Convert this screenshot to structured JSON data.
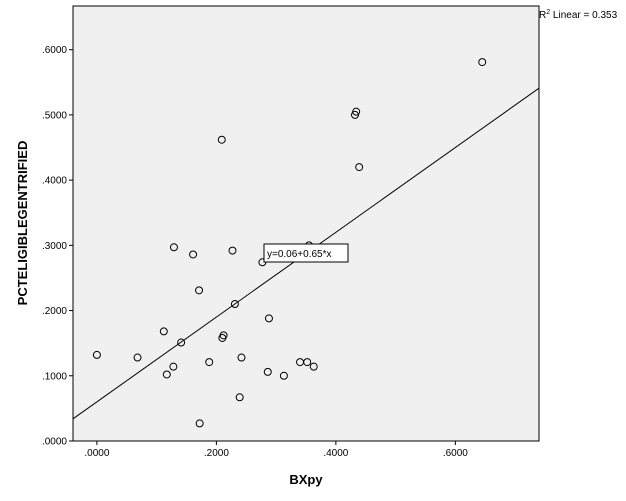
{
  "chart_data": {
    "type": "scatter",
    "title": "",
    "xlabel": "BXpy",
    "ylabel": "PCTELIGIBLEGENTRIFIED",
    "xlim": [
      -0.04,
      0.74
    ],
    "ylim": [
      0.0,
      0.667
    ],
    "x_ticks": [
      0.0,
      0.2,
      0.4,
      0.6
    ],
    "x_tick_labels": [
      ".0000",
      ".2000",
      ".4000",
      ".6000"
    ],
    "y_ticks": [
      0.0,
      0.1,
      0.2,
      0.3,
      0.4,
      0.5,
      0.6
    ],
    "y_tick_labels": [
      ".0000",
      ".1000",
      ".2000",
      ".3000",
      ".4000",
      ".5000",
      ".6000"
    ],
    "grid": false,
    "plot_background": "#f0f0f0",
    "marker": "open-circle",
    "points": [
      {
        "x": 0.0,
        "y": 0.132
      },
      {
        "x": 0.068,
        "y": 0.128
      },
      {
        "x": 0.112,
        "y": 0.168
      },
      {
        "x": 0.117,
        "y": 0.102
      },
      {
        "x": 0.128,
        "y": 0.114
      },
      {
        "x": 0.129,
        "y": 0.297
      },
      {
        "x": 0.141,
        "y": 0.151
      },
      {
        "x": 0.161,
        "y": 0.286
      },
      {
        "x": 0.171,
        "y": 0.231
      },
      {
        "x": 0.172,
        "y": 0.027
      },
      {
        "x": 0.188,
        "y": 0.121
      },
      {
        "x": 0.209,
        "y": 0.462
      },
      {
        "x": 0.21,
        "y": 0.158
      },
      {
        "x": 0.212,
        "y": 0.162
      },
      {
        "x": 0.227,
        "y": 0.292
      },
      {
        "x": 0.231,
        "y": 0.21
      },
      {
        "x": 0.239,
        "y": 0.067
      },
      {
        "x": 0.242,
        "y": 0.128
      },
      {
        "x": 0.277,
        "y": 0.274
      },
      {
        "x": 0.286,
        "y": 0.106
      },
      {
        "x": 0.288,
        "y": 0.188
      },
      {
        "x": 0.313,
        "y": 0.1
      },
      {
        "x": 0.34,
        "y": 0.121
      },
      {
        "x": 0.352,
        "y": 0.121
      },
      {
        "x": 0.355,
        "y": 0.3
      },
      {
        "x": 0.363,
        "y": 0.114
      },
      {
        "x": 0.432,
        "y": 0.5
      },
      {
        "x": 0.434,
        "y": 0.505
      },
      {
        "x": 0.439,
        "y": 0.42
      },
      {
        "x": 0.645,
        "y": 0.581
      }
    ],
    "fit_line": {
      "intercept": 0.06,
      "slope": 0.65
    },
    "fit_equation_label": "y=0.06+0.65*x",
    "r2_prefix": "R",
    "r2_superscript": "2",
    "r2_suffix": " Linear = 0.353"
  }
}
